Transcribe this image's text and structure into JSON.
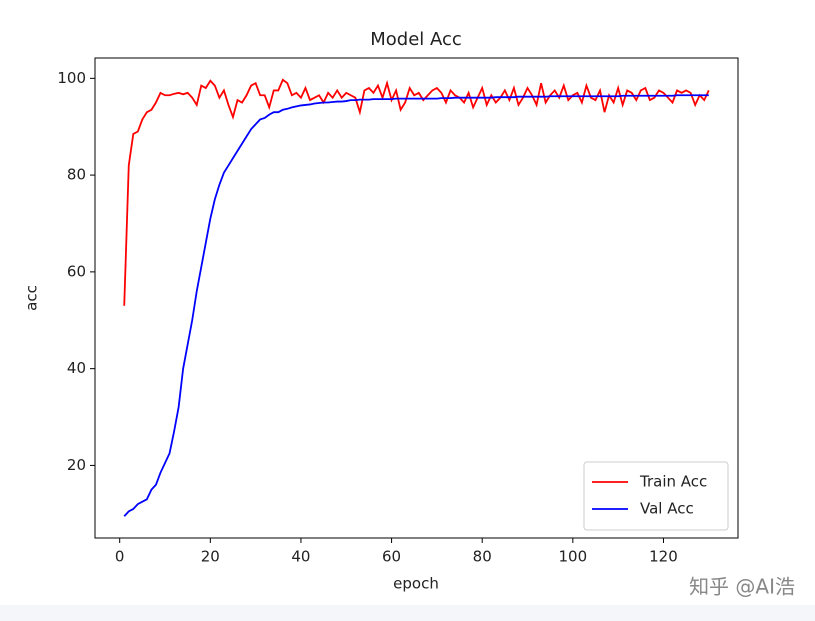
{
  "chart_data": {
    "type": "line",
    "title": "Model Acc",
    "xlabel": "epoch",
    "ylabel": "acc",
    "watermark": "知乎 @AI浩",
    "x": [
      1,
      2,
      3,
      4,
      5,
      6,
      7,
      8,
      9,
      10,
      11,
      12,
      13,
      14,
      15,
      16,
      17,
      18,
      19,
      20,
      21,
      22,
      23,
      24,
      25,
      26,
      27,
      28,
      29,
      30,
      31,
      32,
      33,
      34,
      35,
      36,
      37,
      38,
      39,
      40,
      41,
      42,
      43,
      44,
      45,
      46,
      47,
      48,
      49,
      50,
      51,
      52,
      53,
      54,
      55,
      56,
      57,
      58,
      59,
      60,
      61,
      62,
      63,
      64,
      65,
      66,
      67,
      68,
      69,
      70,
      71,
      72,
      73,
      74,
      75,
      76,
      77,
      78,
      79,
      80,
      81,
      82,
      83,
      84,
      85,
      86,
      87,
      88,
      89,
      90,
      91,
      92,
      93,
      94,
      95,
      96,
      97,
      98,
      99,
      100,
      101,
      102,
      103,
      104,
      105,
      106,
      107,
      108,
      109,
      110,
      111,
      112,
      113,
      114,
      115,
      116,
      117,
      118,
      119,
      120,
      121,
      122,
      123,
      124,
      125,
      126,
      127,
      128,
      129,
      130
    ],
    "series": [
      {
        "name": "Train Acc",
        "color": "#ff0000",
        "values": [
          53,
          82,
          88.5,
          89,
          91.5,
          93,
          93.5,
          95,
          97,
          96.5,
          96.5,
          96.8,
          97,
          96.7,
          97,
          96,
          94.5,
          98.5,
          98,
          99.5,
          98.5,
          96,
          97.5,
          94.5,
          92,
          95.5,
          95,
          96.5,
          98.5,
          99,
          96.5,
          96.5,
          94,
          97.5,
          97.5,
          99.7,
          99,
          96.5,
          97,
          96,
          98,
          95.5,
          96,
          96.5,
          95,
          97,
          96,
          97.5,
          96,
          97,
          96.5,
          96,
          93,
          97.5,
          98,
          97,
          98.5,
          96,
          99,
          95.5,
          97.5,
          93.5,
          95,
          98,
          96.5,
          97,
          95.5,
          96.5,
          97.5,
          98,
          97,
          95,
          97.5,
          96.5,
          96,
          95,
          97,
          94,
          96,
          98,
          94.5,
          96.5,
          95,
          96,
          97.5,
          95.5,
          98,
          94.5,
          96,
          98,
          96.5,
          94.5,
          99,
          95,
          96.5,
          97.5,
          96,
          98.5,
          95.5,
          96.5,
          97,
          95,
          98.5,
          96,
          95.5,
          97.5,
          93,
          96.5,
          95,
          98,
          94.5,
          97.5,
          97,
          95.5,
          97.5,
          98,
          95.5,
          96,
          97.5,
          97,
          96,
          95,
          97.5,
          97,
          97.5,
          97,
          94.5,
          96.5,
          95.5,
          97.5
        ]
      },
      {
        "name": "Val Acc",
        "color": "#0000ff",
        "values": [
          9.5,
          10.5,
          11,
          12,
          12.5,
          13,
          15,
          16,
          18.5,
          20.5,
          22.5,
          27,
          32,
          40,
          45,
          50,
          56,
          61,
          66,
          71,
          75,
          78,
          80.5,
          82,
          83.5,
          85,
          86.5,
          88,
          89.5,
          90.5,
          91.5,
          91.8,
          92.5,
          93,
          93,
          93.5,
          93.7,
          94,
          94.2,
          94.4,
          94.5,
          94.6,
          94.8,
          94.9,
          95,
          95,
          95.1,
          95.2,
          95.2,
          95.3,
          95.5,
          95.5,
          95.6,
          95.6,
          95.6,
          95.7,
          95.7,
          95.7,
          95.7,
          95.7,
          95.8,
          95.8,
          95.8,
          95.8,
          95.8,
          95.8,
          95.8,
          95.8,
          95.8,
          95.8,
          95.9,
          95.9,
          95.9,
          96,
          96,
          96,
          96,
          96,
          96,
          96,
          96,
          96,
          96.1,
          96.1,
          96.1,
          96.1,
          96.1,
          96.2,
          96.2,
          96.2,
          96.2,
          96.2,
          96.2,
          96.2,
          96.3,
          96.3,
          96.3,
          96.3,
          96.3,
          96.3,
          96.3,
          96.3,
          96.3,
          96.3,
          96.3,
          96.3,
          96.3,
          96.3,
          96.3,
          96.3,
          96.4,
          96.4,
          96.4,
          96.4,
          96.4,
          96.4,
          96.4,
          96.4,
          96.4,
          96.4,
          96.4,
          96.4,
          96.5,
          96.5,
          96.5,
          96.5,
          96.5,
          96.5,
          96.5,
          96.5
        ]
      }
    ],
    "xlim": [
      -5.45,
      136.45
    ],
    "ylim": [
      5.0,
      104.2
    ],
    "xticks": [
      0,
      20,
      40,
      60,
      80,
      100,
      120
    ],
    "yticks": [
      20,
      40,
      60,
      80,
      100
    ],
    "grid": false,
    "legend": "lower right"
  }
}
